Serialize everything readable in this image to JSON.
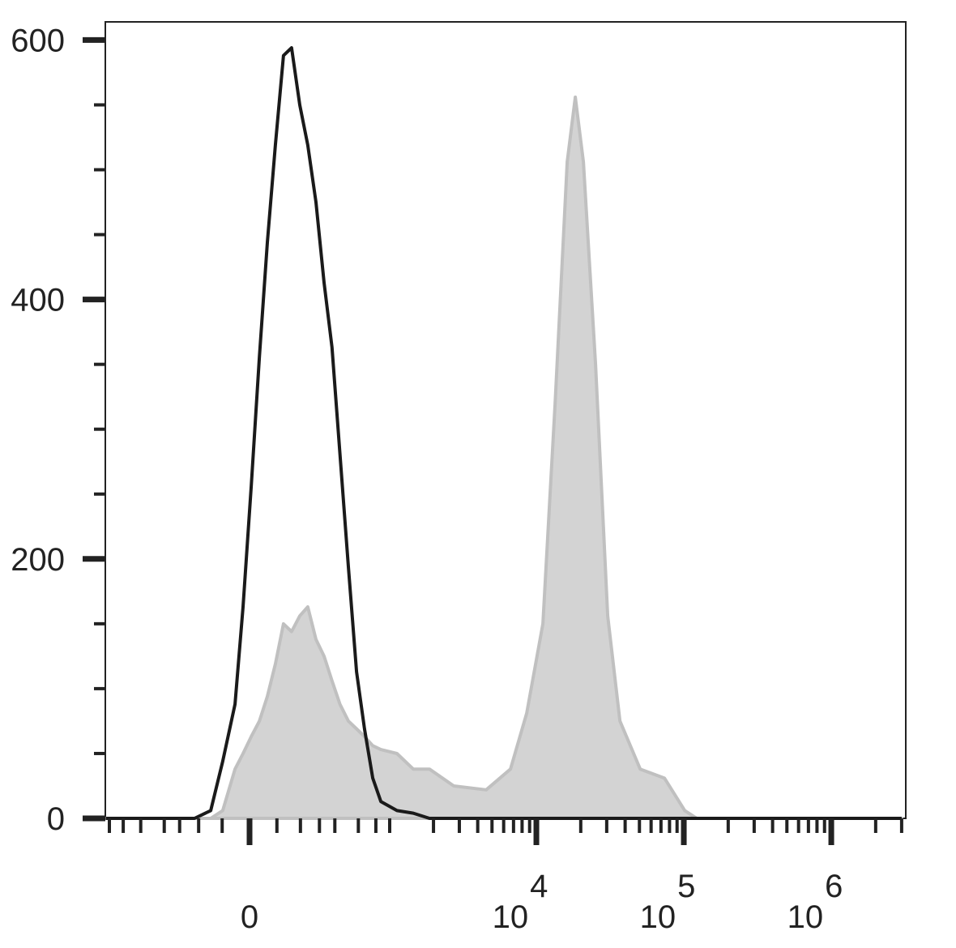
{
  "chart_data": {
    "type": "histogram-overlay",
    "xscale": "biexponential",
    "xlim": [
      -1067,
      3200000
    ],
    "ylim": [
      0,
      614
    ],
    "yticks": [
      0,
      200,
      400,
      600
    ],
    "yminor_ticks": [
      50,
      100,
      150,
      250,
      300,
      350,
      450,
      500,
      550
    ],
    "xticks": [
      {
        "value": 0,
        "label": "0"
      },
      {
        "value": 10000,
        "label": "10",
        "exponent": "4"
      },
      {
        "value": 100000,
        "label": "10",
        "exponent": "5"
      },
      {
        "value": 1000000,
        "label": "10",
        "exponent": "6"
      }
    ],
    "xminor_ticks": [
      -1000,
      -800,
      -600,
      -400,
      -300,
      -200,
      -100,
      100,
      200,
      300,
      400,
      600,
      800,
      1000,
      2000,
      3000,
      4000,
      5000,
      6000,
      7000,
      8000,
      9000,
      20000,
      30000,
      40000,
      50000,
      60000,
      70000,
      80000,
      90000,
      200000,
      300000,
      400000,
      500000,
      600000,
      700000,
      800000,
      900000,
      2000000,
      3000000
    ],
    "x": [
      -1060,
      -220,
      -146,
      -98,
      -52,
      -23,
      6,
      35,
      64,
      94,
      126,
      160,
      197,
      236,
      280,
      328,
      380,
      438,
      507,
      582,
      664,
      761,
      867,
      1124,
      1455,
      1877,
      2749,
      4563,
      6674,
      8603,
      11078,
      13384,
      16185,
      18364,
      20839,
      25197,
      30486,
      36865,
      50576,
      73957,
      101469,
      122580,
      3000000
    ],
    "series": [
      {
        "color": "#c0c0c0",
        "fill": "#d3d3d3",
        "filled": true,
        "values": [
          0,
          0,
          0,
          6,
          38,
          50,
          63,
          75,
          94,
          119,
          150,
          144,
          156,
          163,
          138,
          125,
          106,
          88,
          75,
          69,
          63,
          56,
          53,
          50,
          38,
          38,
          25,
          22,
          38,
          81,
          150,
          319,
          506,
          556,
          506,
          350,
          156,
          75,
          38,
          31,
          6,
          0,
          0
        ]
      },
      {
        "color": "#1a1a1a",
        "filled": false,
        "values": [
          0,
          0,
          6,
          44,
          88,
          163,
          256,
          356,
          444,
          519,
          588,
          594,
          550,
          519,
          475,
          413,
          363,
          281,
          194,
          113,
          69,
          31,
          13,
          6,
          4,
          0,
          0,
          0,
          0,
          0,
          0,
          0,
          0,
          0,
          0,
          0,
          0,
          0,
          0,
          0,
          0,
          0,
          0
        ]
      }
    ]
  }
}
